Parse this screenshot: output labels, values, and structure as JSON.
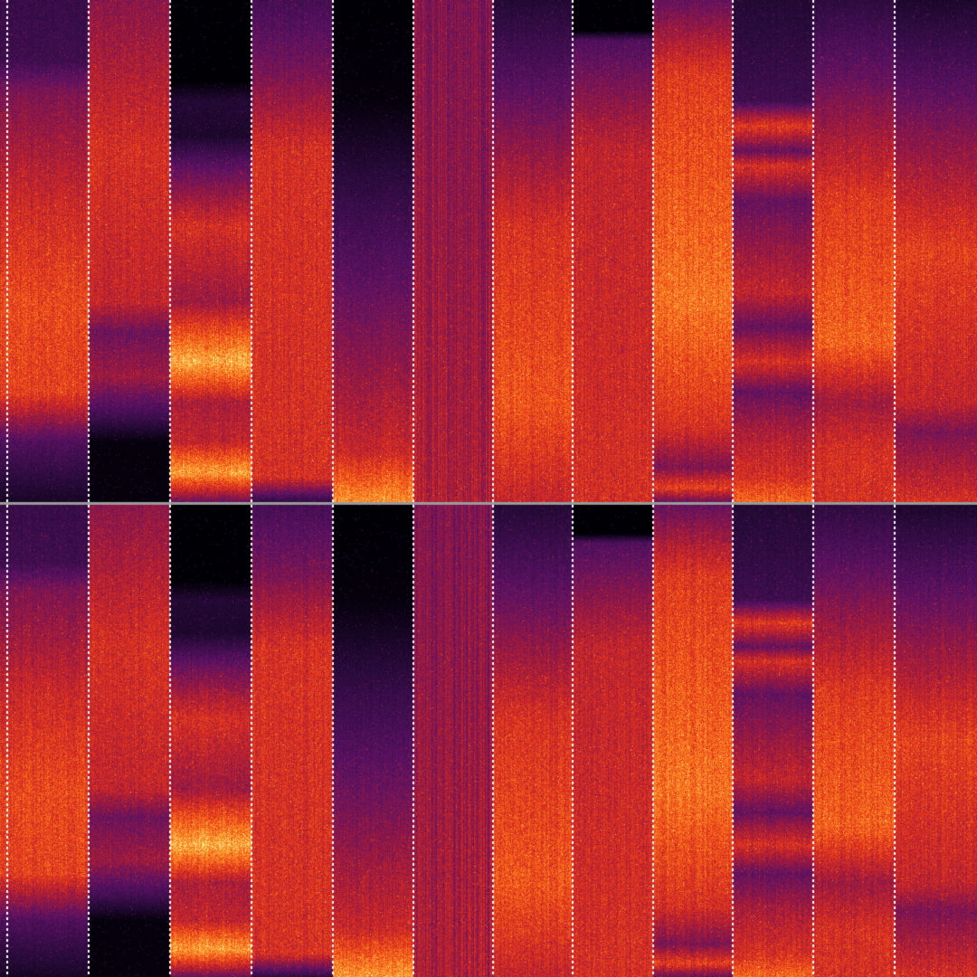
{
  "colormap": [
    "#000004",
    "#2a0b3d",
    "#5c1264",
    "#a01a3c",
    "#e0301e",
    "#f8701a",
    "#fcb040",
    "#fcffa4"
  ],
  "separator_color": "#ffffff",
  "row_divider_color": "#9a9a9a",
  "grid": {
    "rows": 2,
    "columns": 12
  }
}
